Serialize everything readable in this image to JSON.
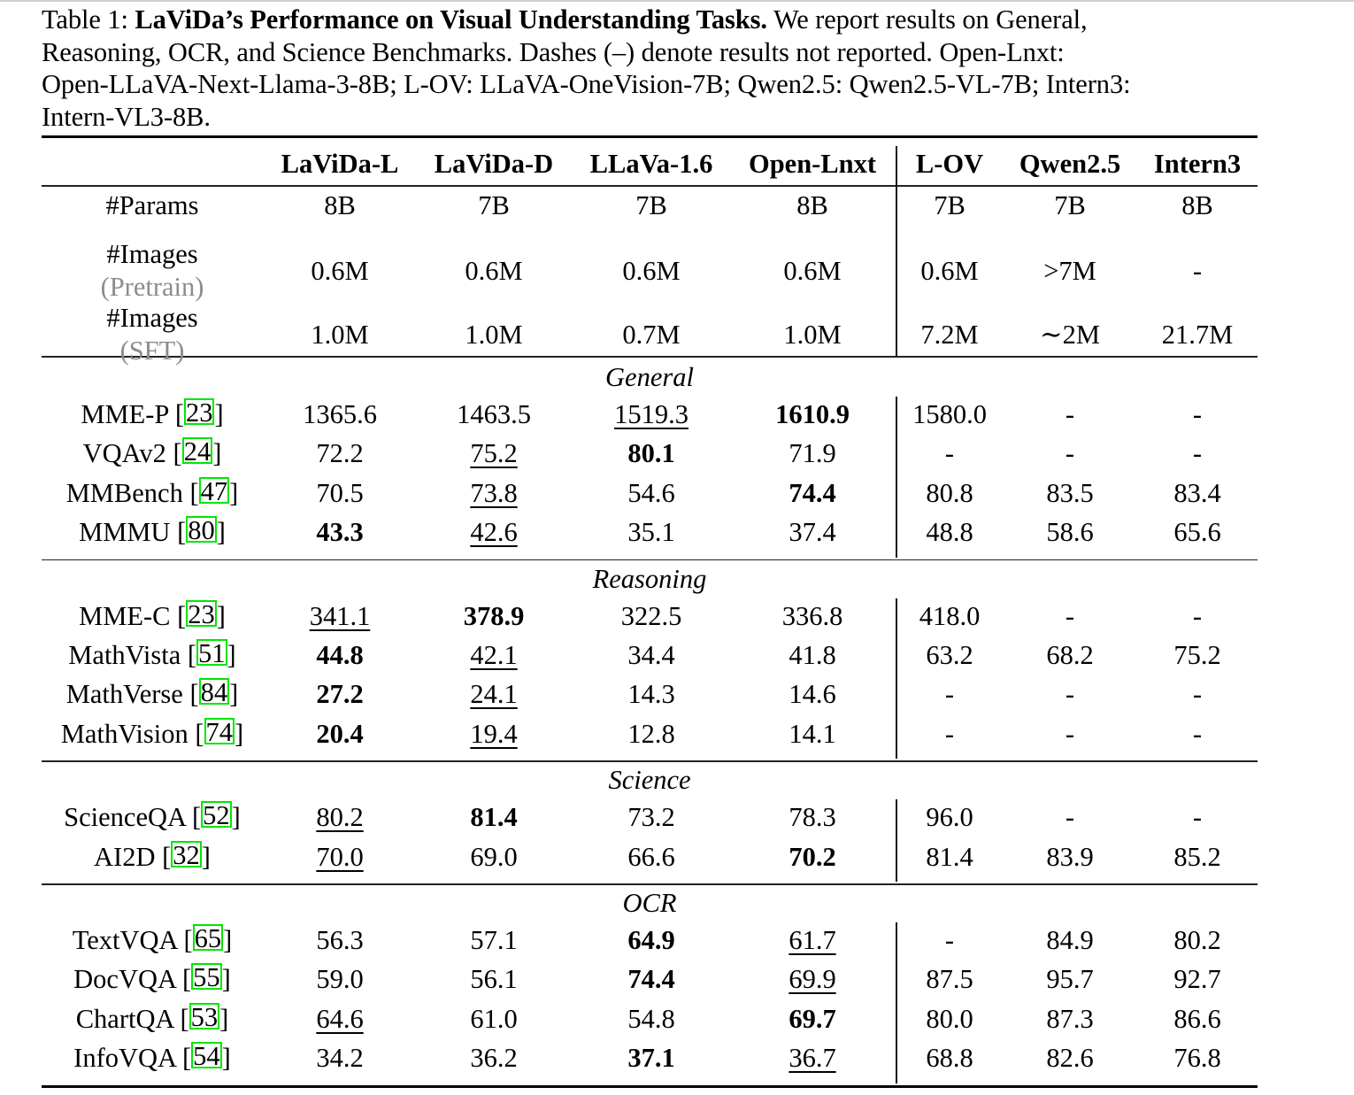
{
  "caption": {
    "label": "Table 1:",
    "title": "LaViDa’s Performance on Visual Understanding Tasks.",
    "lines": [
      "We report results on General,",
      "Reasoning, OCR, and Science Benchmarks.  Dashes (–) denote results not reported.  Open-Lnxt:",
      "Open-LLaVA-Next-Llama-3-8B; L-OV: LLaVA-OneVision-7B; Qwen2.5: Qwen2.5-VL-7B; Intern3:",
      "Intern-VL3-8B."
    ]
  },
  "table": {
    "columns": [
      "LaViDa-L",
      "LaViDa-D",
      "LLaVa-1.6",
      "Open-Lnxt",
      "L-OV",
      "Qwen2.5",
      "Intern3"
    ],
    "meta_rows": [
      {
        "label": "#Params",
        "sub": "",
        "values": [
          "8B",
          "7B",
          "7B",
          "8B",
          "7B",
          "7B",
          "8B"
        ]
      },
      {
        "label": "#Images",
        "sub": "(Pretrain)",
        "values": [
          "0.6M",
          "0.6M",
          "0.6M",
          "0.6M",
          "0.6M",
          ">7M",
          "-"
        ]
      },
      {
        "label": "#Images",
        "sub": "(SFT)",
        "values": [
          "1.0M",
          "1.0M",
          "0.7M",
          "1.0M",
          "7.2M",
          "∼2M",
          "21.7M"
        ]
      }
    ],
    "sections": [
      {
        "name": "General",
        "rows": [
          {
            "bench": "MME-P",
            "ref": "23",
            "values": [
              "1365.6",
              "1463.5",
              "1519.3",
              "1610.9",
              "1580.0",
              "-",
              "-"
            ],
            "bold": [
              3
            ],
            "underline": [
              2
            ]
          },
          {
            "bench": "VQAv2",
            "ref": "24",
            "values": [
              "72.2",
              "75.2",
              "80.1",
              "71.9",
              "-",
              "-",
              "-"
            ],
            "bold": [
              2
            ],
            "underline": [
              1
            ]
          },
          {
            "bench": "MMBench",
            "ref": "47",
            "values": [
              "70.5",
              "73.8",
              "54.6",
              "74.4",
              "80.8",
              "83.5",
              "83.4"
            ],
            "bold": [
              3
            ],
            "underline": [
              1
            ]
          },
          {
            "bench": "MMMU",
            "ref": "80",
            "values": [
              "43.3",
              "42.6",
              "35.1",
              "37.4",
              "48.8",
              "58.6",
              "65.6"
            ],
            "bold": [
              0
            ],
            "underline": [
              1
            ]
          }
        ]
      },
      {
        "name": "Reasoning",
        "rows": [
          {
            "bench": "MME-C",
            "ref": "23",
            "values": [
              "341.1",
              "378.9",
              "322.5",
              "336.8",
              "418.0",
              "-",
              "-"
            ],
            "bold": [
              1
            ],
            "underline": [
              0
            ]
          },
          {
            "bench": "MathVista",
            "ref": "51",
            "values": [
              "44.8",
              "42.1",
              "34.4",
              "41.8",
              "63.2",
              "68.2",
              "75.2"
            ],
            "bold": [
              0
            ],
            "underline": [
              1
            ]
          },
          {
            "bench": "MathVerse",
            "ref": "84",
            "values": [
              "27.2",
              "24.1",
              "14.3",
              "14.6",
              "-",
              "-",
              "-"
            ],
            "bold": [
              0
            ],
            "underline": [
              1
            ]
          },
          {
            "bench": "MathVision",
            "ref": "74",
            "values": [
              "20.4",
              "19.4",
              "12.8",
              "14.1",
              "-",
              "-",
              "-"
            ],
            "bold": [
              0
            ],
            "underline": [
              1
            ]
          }
        ]
      },
      {
        "name": "Science",
        "rows": [
          {
            "bench": "ScienceQA",
            "ref": "52",
            "values": [
              "80.2",
              "81.4",
              "73.2",
              "78.3",
              "96.0",
              "-",
              "-"
            ],
            "bold": [
              1
            ],
            "underline": [
              0
            ]
          },
          {
            "bench": "AI2D",
            "ref": "32",
            "values": [
              "70.0",
              "69.0",
              "66.6",
              "70.2",
              "81.4",
              "83.9",
              "85.2"
            ],
            "bold": [
              3
            ],
            "underline": [
              0
            ]
          }
        ]
      },
      {
        "name": "OCR",
        "rows": [
          {
            "bench": "TextVQA",
            "ref": "65",
            "values": [
              "56.3",
              "57.1",
              "64.9",
              "61.7",
              "-",
              "84.9",
              "80.2"
            ],
            "bold": [
              2
            ],
            "underline": [
              3
            ]
          },
          {
            "bench": "DocVQA",
            "ref": "55",
            "values": [
              "59.0",
              "56.1",
              "74.4",
              "69.9",
              "87.5",
              "95.7",
              "92.7"
            ],
            "bold": [
              2
            ],
            "underline": [
              3
            ]
          },
          {
            "bench": "ChartQA",
            "ref": "53",
            "values": [
              "64.6",
              "61.0",
              "54.8",
              "69.7",
              "80.0",
              "87.3",
              "86.6"
            ],
            "bold": [
              3
            ],
            "underline": [
              0
            ]
          },
          {
            "bench": "InfoVQA",
            "ref": "54",
            "values": [
              "34.2",
              "36.2",
              "37.1",
              "36.7",
              "68.8",
              "82.6",
              "76.8"
            ],
            "bold": [
              2
            ],
            "underline": [
              3
            ]
          }
        ]
      }
    ]
  },
  "colors": {
    "citation_box": "#00e600",
    "subtitle_gray": "#8c8c8c"
  }
}
